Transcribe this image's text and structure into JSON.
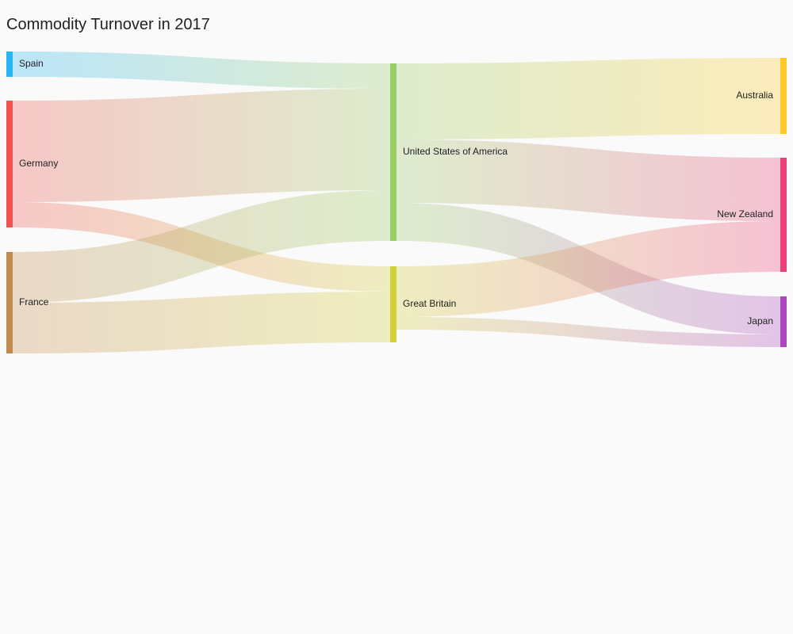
{
  "chart_data": {
    "type": "sankey",
    "title": "Commodity Turnover in 2017",
    "nodes": [
      {
        "id": "spain",
        "name": "Spain",
        "color": "#29b6f6",
        "column": 0
      },
      {
        "id": "germany",
        "name": "Germany",
        "color": "#ef5350",
        "column": 0
      },
      {
        "id": "france",
        "name": "France",
        "color": "#c28a4e",
        "column": 0
      },
      {
        "id": "usa",
        "name": "United States of America",
        "color": "#9ccc65",
        "column": 1
      },
      {
        "id": "gb",
        "name": "Great Britain",
        "color": "#d4d03a",
        "column": 1
      },
      {
        "id": "au",
        "name": "Australia",
        "color": "#ffca28",
        "column": 2
      },
      {
        "id": "nz",
        "name": "New Zealand",
        "color": "#ec407a",
        "column": 2
      },
      {
        "id": "jp",
        "name": "Japan",
        "color": "#ab47bc",
        "column": 2
      }
    ],
    "links": [
      {
        "source": "spain",
        "target": "usa",
        "value": 10
      },
      {
        "source": "germany",
        "target": "usa",
        "value": 40
      },
      {
        "source": "germany",
        "target": "gb",
        "value": 10
      },
      {
        "source": "france",
        "target": "usa",
        "value": 20
      },
      {
        "source": "france",
        "target": "gb",
        "value": 20
      },
      {
        "source": "usa",
        "target": "au",
        "value": 30
      },
      {
        "source": "usa",
        "target": "nz",
        "value": 25
      },
      {
        "source": "usa",
        "target": "jp",
        "value": 15
      },
      {
        "source": "gb",
        "target": "nz",
        "value": 20
      },
      {
        "source": "gb",
        "target": "jp",
        "value": 5
      }
    ]
  }
}
